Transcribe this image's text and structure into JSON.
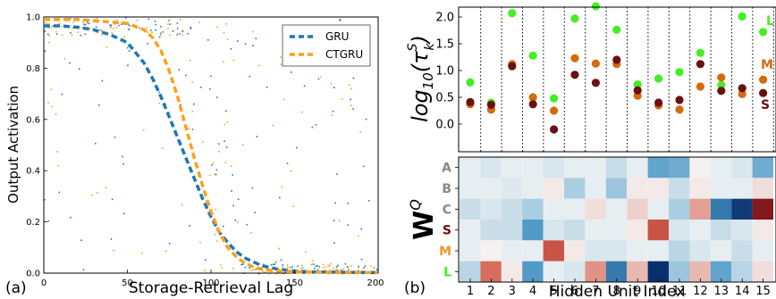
{
  "panel_a": {
    "label": "(a)",
    "chart_data": {
      "type": "line",
      "xlabel": "Storage-Retrieval Lag",
      "ylabel": "Output Activation",
      "xlim": [
        0,
        200
      ],
      "ylim": [
        0,
        1.0
      ],
      "xticks": [
        0,
        50,
        100,
        150,
        200
      ],
      "yticks": [
        0.0,
        0.2,
        0.4,
        0.6,
        0.8,
        1.0
      ],
      "grid": false,
      "legend": "top-right",
      "series": [
        {
          "name": "GRU",
          "color": "#1f77b4",
          "style": "dashed",
          "x": [
            0,
            10,
            20,
            30,
            40,
            50,
            55,
            60,
            65,
            70,
            75,
            80,
            85,
            90,
            95,
            100,
            105,
            110,
            115,
            120,
            125,
            130,
            140,
            150,
            160,
            170,
            180,
            200
          ],
          "y": [
            0.965,
            0.965,
            0.96,
            0.95,
            0.93,
            0.9,
            0.86,
            0.82,
            0.76,
            0.69,
            0.61,
            0.53,
            0.45,
            0.37,
            0.29,
            0.22,
            0.16,
            0.12,
            0.085,
            0.06,
            0.045,
            0.03,
            0.015,
            0.008,
            0.005,
            0.004,
            0.003,
            0.002
          ]
        },
        {
          "name": "CTGRU",
          "color": "#ff9f1c",
          "style": "dashed",
          "x": [
            0,
            10,
            20,
            30,
            40,
            50,
            60,
            65,
            70,
            75,
            80,
            85,
            90,
            95,
            100,
            105,
            110,
            115,
            120,
            125,
            130,
            140,
            150,
            160,
            170,
            180,
            200
          ],
          "y": [
            0.99,
            0.99,
            0.99,
            0.985,
            0.98,
            0.975,
            0.95,
            0.92,
            0.87,
            0.79,
            0.69,
            0.57,
            0.45,
            0.34,
            0.24,
            0.16,
            0.1,
            0.065,
            0.04,
            0.025,
            0.015,
            0.008,
            0.005,
            0.004,
            0.003,
            0.002,
            0.002
          ]
        }
      ]
    }
  },
  "panel_b": {
    "label": "(b)",
    "scatter": {
      "chart_data": {
        "type": "scatter",
        "ylabel": "log10(τkS)",
        "ylim": [
          -0.2,
          2.25
        ],
        "yticks": [
          0.0,
          0.5,
          1.0,
          1.5,
          2.0
        ],
        "x_categories": [
          1,
          2,
          3,
          4,
          5,
          6,
          7,
          8,
          9,
          10,
          11,
          12,
          13,
          14,
          15
        ],
        "series": [
          {
            "name": "L",
            "color": "#44ee22",
            "values": [
              0.78,
              0.4,
              2.07,
              1.28,
              0.48,
              1.97,
              2.2,
              1.76,
              0.74,
              0.85,
              0.97,
              1.33,
              0.73,
              2.01,
              1.72
            ]
          },
          {
            "name": "M",
            "color": "#d46a0d",
            "values": [
              0.37,
              0.27,
              1.12,
              0.5,
              0.25,
              1.23,
              1.13,
              1.12,
              0.53,
              0.35,
              0.27,
              0.7,
              0.87,
              0.56,
              0.83
            ]
          },
          {
            "name": "S",
            "color": "#6a1010",
            "values": [
              0.41,
              0.36,
              1.08,
              0.37,
              -0.1,
              0.92,
              0.77,
              1.2,
              0.63,
              0.4,
              0.45,
              1.12,
              0.62,
              0.67,
              0.58
            ]
          }
        ]
      },
      "series_labels": [
        "L",
        "M",
        "S"
      ],
      "series_label_colors": [
        "#44ee22",
        "#d46a0d",
        "#6a1010"
      ]
    },
    "heatmap": {
      "chart_data": {
        "type": "heatmap",
        "ylabel": "WQ",
        "xlabel": "Hidden Unit Index",
        "x_categories": [
          1,
          2,
          3,
          4,
          5,
          6,
          7,
          8,
          9,
          10,
          11,
          12,
          13,
          14,
          15
        ],
        "y_categories": [
          "A",
          "B",
          "C",
          "S",
          "M",
          "L"
        ],
        "y_label_colors": [
          "#888888",
          "#888888",
          "#888888",
          "#6a1010",
          "#f0962a",
          "#44ee22"
        ],
        "values": [
          [
            -0.05,
            -0.1,
            -0.05,
            -0.05,
            -0.1,
            -0.05,
            -0.05,
            -0.15,
            -0.05,
            -0.5,
            -0.45,
            0.02,
            -0.05,
            -0.1,
            -0.45
          ],
          [
            -0.05,
            -0.05,
            -0.08,
            -0.05,
            0.05,
            -0.25,
            -0.05,
            -0.3,
            0.05,
            0.05,
            -0.15,
            0.05,
            -0.05,
            -0.05,
            0.1
          ],
          [
            -0.15,
            -0.1,
            -0.15,
            -0.25,
            -0.05,
            -0.05,
            0.1,
            -0.05,
            0.15,
            -0.05,
            -0.25,
            0.35,
            -0.7,
            -0.95,
            0.9
          ],
          [
            -0.05,
            -0.15,
            -0.15,
            -0.55,
            -0.1,
            -0.15,
            -0.05,
            -0.05,
            0.05,
            0.65,
            -0.1,
            -0.05,
            -0.15,
            -0.1,
            0.05
          ],
          [
            -0.05,
            0.02,
            -0.05,
            -0.05,
            0.65,
            0.05,
            -0.1,
            -0.1,
            -0.05,
            -0.05,
            -0.2,
            -0.1,
            -0.05,
            -0.15,
            -0.05
          ],
          [
            -0.2,
            0.55,
            0.05,
            -0.55,
            -0.05,
            -0.1,
            0.4,
            -0.7,
            0.25,
            -1.0,
            -0.3,
            0.25,
            -0.5,
            -0.2,
            0.1
          ]
        ]
      }
    }
  }
}
